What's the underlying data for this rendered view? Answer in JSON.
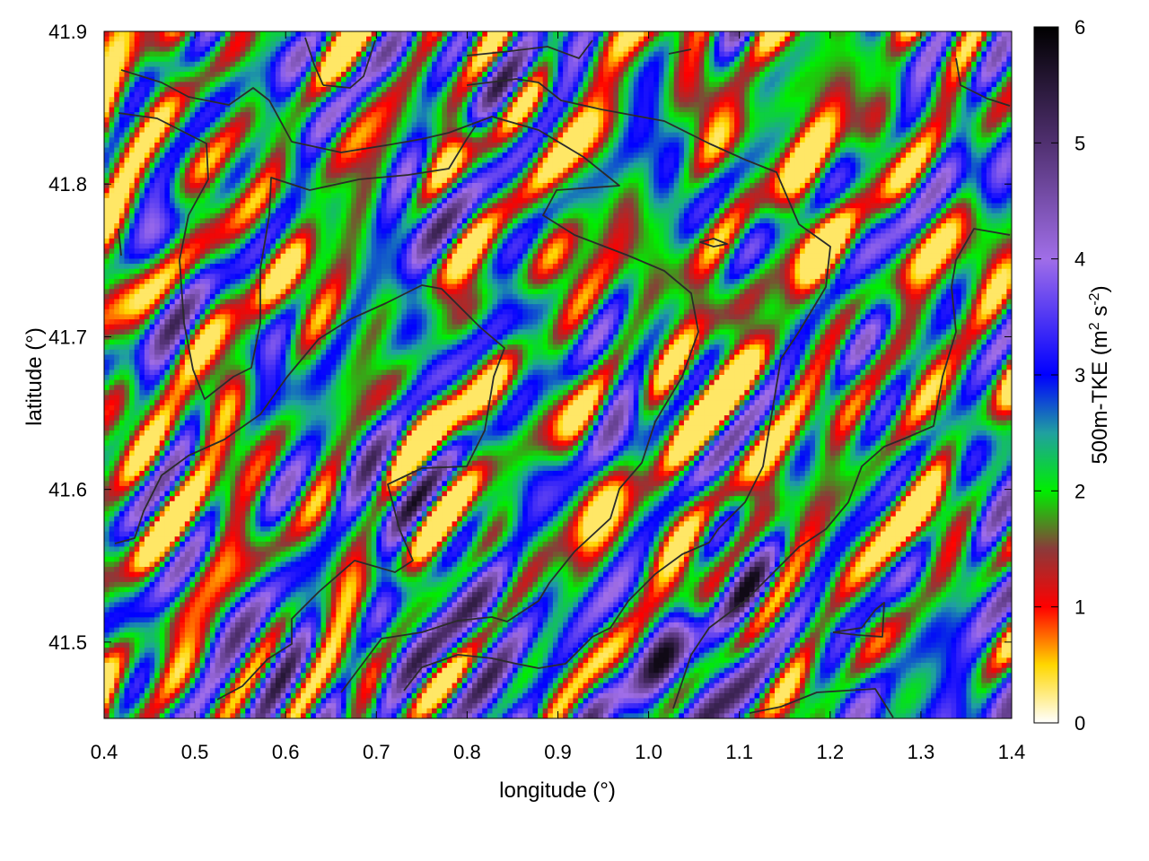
{
  "chart_data": {
    "type": "heatmap",
    "xlabel": "longitude (°)",
    "ylabel": "latitude (°)",
    "colorbar_label": "500m-TKE (m² s⁻²)",
    "colorbar_label_main": "500m-TKE (m",
    "colorbar_label_sup1": "2",
    "colorbar_label_mid": " s",
    "colorbar_label_sup2": "-2",
    "colorbar_label_end": ")",
    "xlim": [
      0.4,
      1.4
    ],
    "ylim": [
      41.45,
      41.9
    ],
    "xticks": [
      0.4,
      0.5,
      0.6,
      0.7,
      0.8,
      0.9,
      1.0,
      1.1,
      1.2,
      1.3,
      1.4
    ],
    "xtick_labels": [
      "0.4",
      "0.5",
      "0.6",
      "0.7",
      "0.8",
      "0.9",
      "1.0",
      "1.1",
      "1.2",
      "1.3",
      "1.4"
    ],
    "yticks": [
      41.5,
      41.6,
      41.7,
      41.8,
      41.9
    ],
    "ytick_labels": [
      "41.5",
      "41.6",
      "41.7",
      "41.8",
      "41.9"
    ],
    "colorbar_range": [
      0,
      6
    ],
    "colorbar_ticks": [
      0,
      1,
      2,
      3,
      4,
      5,
      6
    ],
    "colorbar_tick_labels": [
      "0",
      "1",
      "2",
      "3",
      "4",
      "5",
      "6"
    ],
    "colorscale": [
      {
        "v": 0.0,
        "color": "#ffffff"
      },
      {
        "v": 0.5,
        "color": "#ffd700"
      },
      {
        "v": 1.0,
        "color": "#ff0000"
      },
      {
        "v": 1.5,
        "color": "#8b3a3a"
      },
      {
        "v": 2.0,
        "color": "#00ee00"
      },
      {
        "v": 2.5,
        "color": "#20a0a0"
      },
      {
        "v": 3.0,
        "color": "#0000ff"
      },
      {
        "v": 4.0,
        "color": "#a06ee8"
      },
      {
        "v": 5.0,
        "color": "#503070"
      },
      {
        "v": 6.0,
        "color": "#000000"
      }
    ],
    "field_description": "500m turbulent kinetic energy on a regular lon/lat grid; values mostly 1–3 with elevated values (up to ~5.5) in the south-east near lon 1.0–1.1, lat 41.46–41.55; terrain contour lines overlaid",
    "grid": false,
    "legend": "colorbar-right"
  }
}
